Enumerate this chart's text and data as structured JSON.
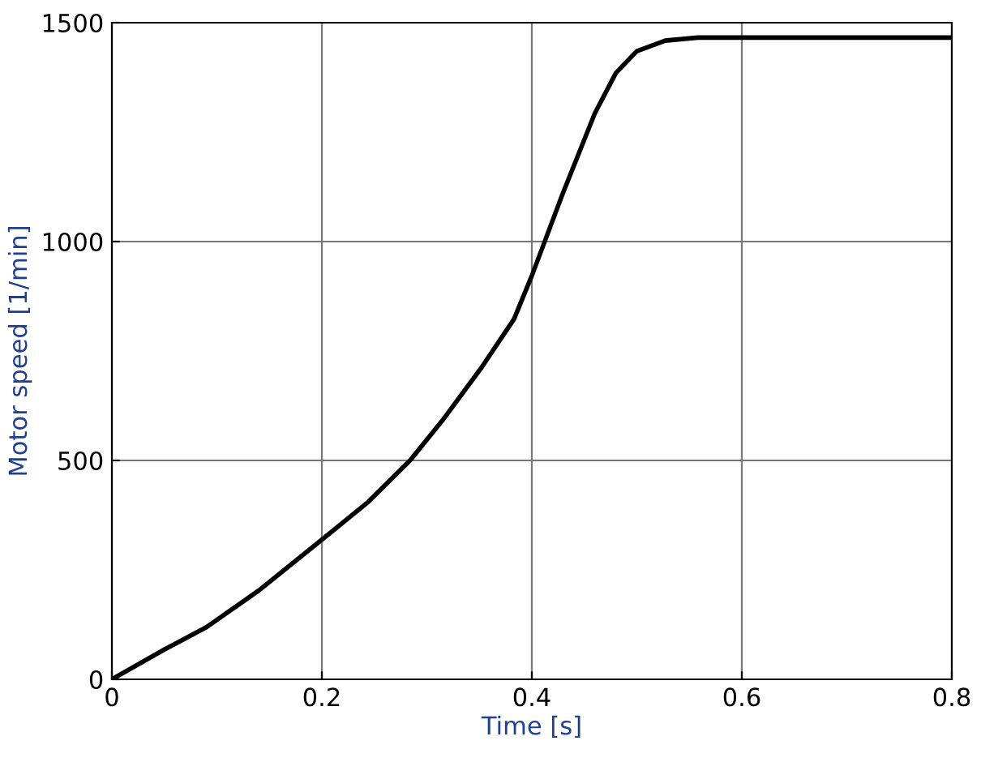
{
  "chart_data": {
    "type": "line",
    "xlabel": "Time [s]",
    "ylabel": "Motor speed [1/min]",
    "series": [
      {
        "color": "#000000",
        "x": [
          0,
          0.05,
          0.09,
          0.14,
          0.2,
          0.244,
          0.284,
          0.316,
          0.352,
          0.383,
          0.4,
          0.429,
          0.46,
          0.48,
          0.5,
          0.527,
          0.558,
          0.8
        ],
        "values": [
          0,
          68,
          119,
          203,
          319,
          405,
          500,
          595,
          712,
          823,
          922,
          1107,
          1293,
          1385,
          1435,
          1459,
          1466,
          1466
        ]
      }
    ],
    "xlim": [
      0,
      0.8
    ],
    "ylim": [
      0,
      1500
    ],
    "xticks": [
      0,
      0.2,
      0.4,
      0.6,
      0.8
    ],
    "yticks": [
      0,
      500,
      1000,
      1500
    ],
    "grid": true,
    "marker": "none",
    "line_style": "solid"
  }
}
